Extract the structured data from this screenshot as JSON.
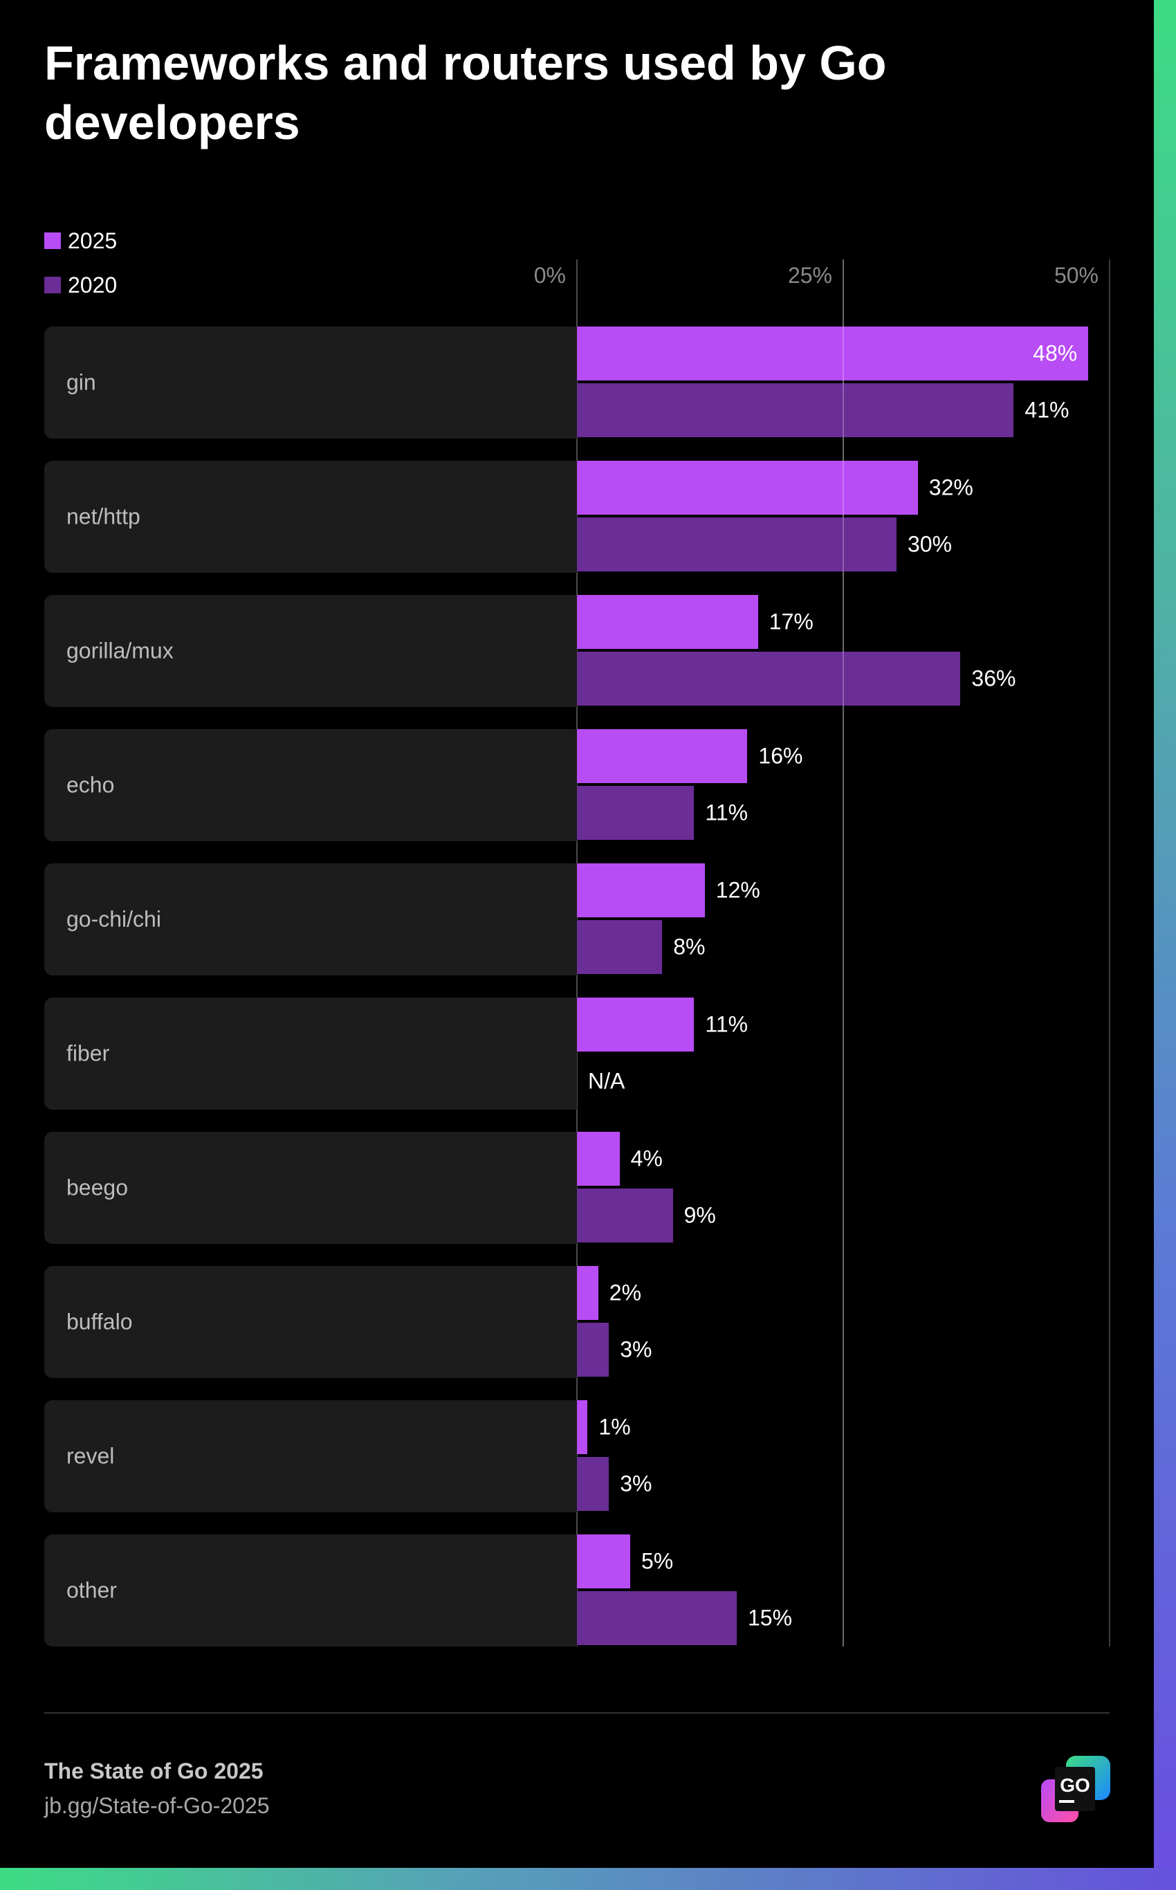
{
  "title": "Frameworks and routers used by Go developers",
  "legend": [
    {
      "label": "2025",
      "color": "#b84cf5"
    },
    {
      "label": "2020",
      "color": "#6b2d96"
    }
  ],
  "footer": {
    "title": "The State of Go 2025",
    "link": "jb.gg/State-of-Go-2025",
    "logo_text": "GO"
  },
  "chart_data": {
    "type": "bar",
    "orientation": "horizontal",
    "title": "Frameworks and routers used by Go developers",
    "categories": [
      "gin",
      "net/http",
      "gorilla/mux",
      "echo",
      "go-chi/chi",
      "fiber",
      "beego",
      "buffalo",
      "revel",
      "other"
    ],
    "series": [
      {
        "name": "2025",
        "color": "#b84cf5",
        "values": [
          48,
          32,
          17,
          16,
          12,
          11,
          4,
          2,
          1,
          5
        ],
        "labels": [
          "48%",
          "32%",
          "17%",
          "16%",
          "12%",
          "11%",
          "4%",
          "2%",
          "1%",
          "5%"
        ]
      },
      {
        "name": "2020",
        "color": "#6b2d96",
        "values": [
          41,
          30,
          36,
          11,
          8,
          null,
          9,
          3,
          3,
          15
        ],
        "labels": [
          "41%",
          "30%",
          "36%",
          "11%",
          "8%",
          "N/A",
          "9%",
          "3%",
          "3%",
          "15%"
        ]
      }
    ],
    "xticks": [
      "0%",
      "25%",
      "50%"
    ],
    "xlim": [
      0,
      50
    ],
    "grid": true,
    "legend_position": "top-left"
  }
}
